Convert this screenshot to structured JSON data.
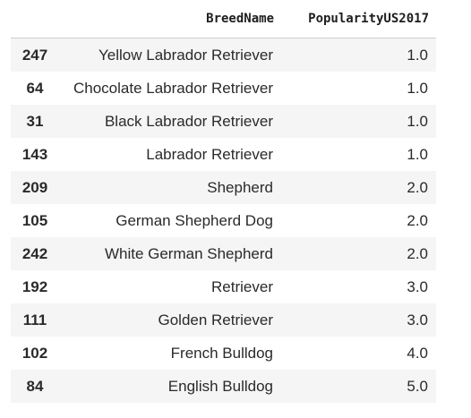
{
  "table": {
    "columns": [
      "BreedName",
      "PopularityUS2017"
    ],
    "rows": [
      {
        "index": "247",
        "breed": "Yellow Labrador Retriever",
        "popularity": "1.0"
      },
      {
        "index": "64",
        "breed": "Chocolate Labrador Retriever",
        "popularity": "1.0"
      },
      {
        "index": "31",
        "breed": "Black Labrador Retriever",
        "popularity": "1.0"
      },
      {
        "index": "143",
        "breed": "Labrador Retriever",
        "popularity": "1.0"
      },
      {
        "index": "209",
        "breed": "Shepherd",
        "popularity": "2.0"
      },
      {
        "index": "105",
        "breed": "German Shepherd Dog",
        "popularity": "2.0"
      },
      {
        "index": "242",
        "breed": "White German Shepherd",
        "popularity": "2.0"
      },
      {
        "index": "192",
        "breed": "Retriever",
        "popularity": "3.0"
      },
      {
        "index": "111",
        "breed": "Golden Retriever",
        "popularity": "3.0"
      },
      {
        "index": "102",
        "breed": "French Bulldog",
        "popularity": "4.0"
      },
      {
        "index": "84",
        "breed": "English Bulldog",
        "popularity": "5.0"
      }
    ]
  },
  "colors": {
    "stripe": "#f5f5f5",
    "border": "#cfcfcf",
    "text": "#2a2a2a"
  }
}
